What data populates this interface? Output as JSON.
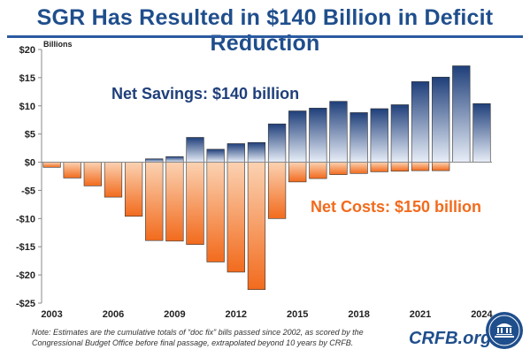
{
  "title": "SGR Has Resulted in $140 Billion in Deficit Reduction",
  "note_line1": "Note: Estimates are the cumulative totals of “doc fix” bills passed since 2002,  as scored by the",
  "note_line2": "Congressional Budget Office before final passage, extrapolated beyond 10 years by CRFB.",
  "brand": "CRFB.org",
  "colors": {
    "title": "#1f4e8c",
    "savings_dark": "#1f3f7a",
    "savings_light": "#e8eef8",
    "costs_dark": "#f26b1d",
    "costs_light": "#fbd2b2"
  },
  "chart_data": {
    "type": "bar",
    "unit_label": "Billions",
    "ylim": [
      -25,
      20
    ],
    "yticks": [
      20,
      15,
      10,
      5,
      0,
      -5,
      -10,
      -15,
      -20,
      -25
    ],
    "ytick_labels": [
      "$20",
      "$15",
      "$10",
      "$5",
      "$0",
      "-$5",
      "-$10",
      "-$15",
      "-$20",
      "-$25"
    ],
    "xtick_labels": [
      "2003",
      "2006",
      "2009",
      "2012",
      "2015",
      "2018",
      "2021",
      "2024"
    ],
    "xtick_years": [
      2003,
      2006,
      2009,
      2012,
      2015,
      2018,
      2021,
      2024
    ],
    "grid": false,
    "categories": [
      2003,
      2004,
      2005,
      2006,
      2007,
      2008,
      2009,
      2010,
      2011,
      2012,
      2013,
      2014,
      2015,
      2016,
      2017,
      2018,
      2019,
      2020,
      2021,
      2022,
      2023,
      2024
    ],
    "series": [
      {
        "name": "Net Savings: $140 billion",
        "values": [
          0,
          0,
          0,
          0,
          0,
          0.6,
          1.0,
          4.4,
          2.3,
          3.3,
          3.5,
          6.8,
          9.1,
          9.6,
          10.8,
          8.8,
          9.5,
          10.2,
          14.3,
          15.1,
          17.1,
          10.4
        ]
      },
      {
        "name": "Net Costs: $150 billion",
        "values": [
          -0.9,
          -2.8,
          -4.2,
          -6.2,
          -9.6,
          -13.9,
          -14.0,
          -14.6,
          -17.7,
          -19.5,
          -22.6,
          -10.0,
          -3.5,
          -2.9,
          -2.2,
          -2.0,
          -1.7,
          -1.6,
          -1.5,
          -1.5,
          0,
          0
        ]
      }
    ]
  }
}
